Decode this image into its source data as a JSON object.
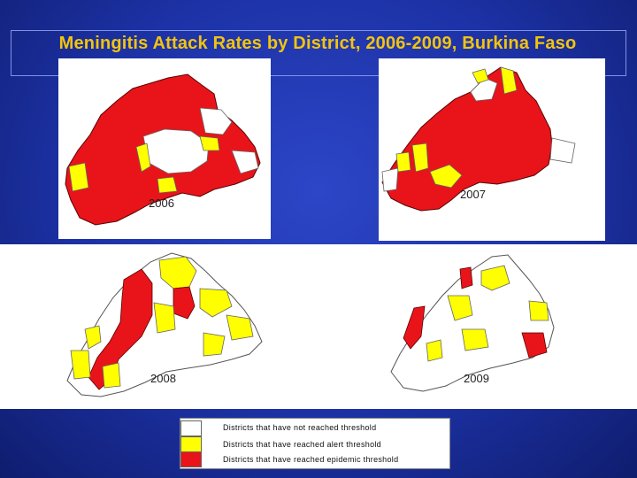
{
  "title": "Meningitis Attack Rates by District, 2006-2009,  Burkina Faso",
  "maps": [
    {
      "year": "2006"
    },
    {
      "year": "2007"
    },
    {
      "year": "2008"
    },
    {
      "year": "2009"
    }
  ],
  "legend": [
    {
      "label": "Districts that have not reached threshold",
      "color": "#ffffff"
    },
    {
      "label": "Districts that  have reached alert threshold",
      "color": "#ffff00"
    },
    {
      "label": "Districts that  have reached epidemic threshold",
      "color": "#e8141a"
    }
  ],
  "colors": {
    "background": "#1b2f9c",
    "title": "#f2c40f",
    "epidemic": "#e8141a",
    "alert": "#ffff00",
    "none": "#ffffff"
  }
}
